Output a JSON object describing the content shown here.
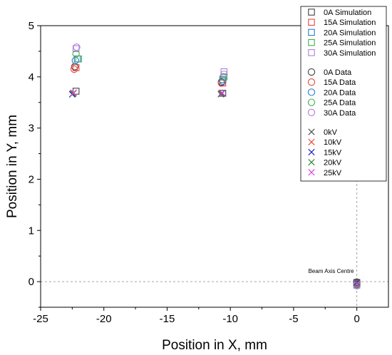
{
  "chart_data": {
    "type": "scatter",
    "title": "",
    "xlabel": "Position in X, mm",
    "ylabel": "Position in Y, mm",
    "xlim": [
      -25,
      2.5
    ],
    "ylim": [
      -0.5,
      5
    ],
    "xticks": [
      -25,
      -20,
      -15,
      -10,
      -5,
      0
    ],
    "yticks": [
      0,
      1,
      2,
      3,
      4,
      5
    ],
    "grid": false,
    "legend_position": "top-right",
    "reference_lines": [
      {
        "orientation": "horizontal",
        "value": 0,
        "style": "dashed"
      },
      {
        "orientation": "vertical",
        "value": 0,
        "style": "dashed"
      }
    ],
    "annotation": {
      "text": "Beam Axis Centre",
      "x": 0,
      "y": 0
    },
    "series": [
      {
        "name": "0A Simulation",
        "marker": "square",
        "color": "#404040",
        "points": [
          [
            -22.2,
            3.72
          ],
          [
            -10.6,
            3.68
          ],
          [
            0,
            -0.02
          ]
        ]
      },
      {
        "name": "15A Simulation",
        "marker": "square",
        "color": "#e8443a",
        "points": [
          [
            -22.2,
            4.18
          ],
          [
            -10.6,
            3.88
          ],
          [
            0,
            -0.04
          ]
        ]
      },
      {
        "name": "20A Simulation",
        "marker": "square",
        "color": "#2b7bd1",
        "points": [
          [
            -22.1,
            4.35
          ],
          [
            -10.6,
            3.95
          ],
          [
            0,
            -0.05
          ]
        ]
      },
      {
        "name": "25A Simulation",
        "marker": "square",
        "color": "#3fae4a",
        "points": [
          [
            -22.0,
            4.35
          ],
          [
            -10.5,
            4.0
          ],
          [
            0,
            -0.05
          ]
        ]
      },
      {
        "name": "30A Simulation",
        "marker": "square",
        "color": "#b07fd8",
        "points": [
          [
            -22.2,
            4.55
          ],
          [
            -10.5,
            4.1
          ],
          [
            0,
            -0.07
          ]
        ]
      },
      {
        "name": "0A Data",
        "marker": "circle",
        "color": "#404040",
        "points": [
          [
            -22.3,
            4.2
          ],
          [
            -10.7,
            3.9
          ],
          [
            0,
            -0.01
          ]
        ]
      },
      {
        "name": "15A Data",
        "marker": "circle",
        "color": "#e8443a",
        "points": [
          [
            -22.35,
            4.15
          ],
          [
            -10.7,
            3.88
          ],
          [
            0,
            -0.04
          ]
        ]
      },
      {
        "name": "20A Data",
        "marker": "circle",
        "color": "#2b7bd1",
        "points": [
          [
            -22.25,
            4.32
          ],
          [
            -10.6,
            3.92
          ],
          [
            0,
            -0.05
          ]
        ]
      },
      {
        "name": "25A Data",
        "marker": "circle",
        "color": "#3fae4a",
        "points": [
          [
            -22.2,
            4.45
          ],
          [
            -10.55,
            4.0
          ],
          [
            0,
            -0.06
          ]
        ]
      },
      {
        "name": "30A Data",
        "marker": "circle",
        "color": "#b07fd8",
        "points": [
          [
            -22.15,
            4.58
          ],
          [
            -10.5,
            4.05
          ],
          [
            0,
            -0.08
          ]
        ]
      },
      {
        "name": "0kV",
        "marker": "x",
        "color": "#505050",
        "points": [
          [
            -22.45,
            3.67
          ],
          [
            -10.75,
            3.66
          ],
          [
            0,
            -0.01
          ]
        ]
      },
      {
        "name": "10kV",
        "marker": "x",
        "color": "#e8443a",
        "points": [
          [
            -22.4,
            3.68
          ],
          [
            -10.7,
            3.67
          ],
          [
            0,
            -0.02
          ]
        ]
      },
      {
        "name": "15kV",
        "marker": "x",
        "color": "#2020c8",
        "points": [
          [
            -22.5,
            3.66
          ],
          [
            -10.65,
            3.68
          ],
          [
            0,
            -0.02
          ]
        ]
      },
      {
        "name": "20kV",
        "marker": "x",
        "color": "#2a8a3a",
        "points": [
          [
            -22.45,
            3.67
          ],
          [
            -10.7,
            3.68
          ],
          [
            0.02,
            -0.03
          ]
        ]
      },
      {
        "name": "25kV",
        "marker": "x",
        "color": "#e040e0",
        "points": [
          [
            -22.4,
            3.69
          ],
          [
            -10.65,
            3.69
          ],
          [
            0.02,
            -0.04
          ]
        ]
      }
    ]
  }
}
